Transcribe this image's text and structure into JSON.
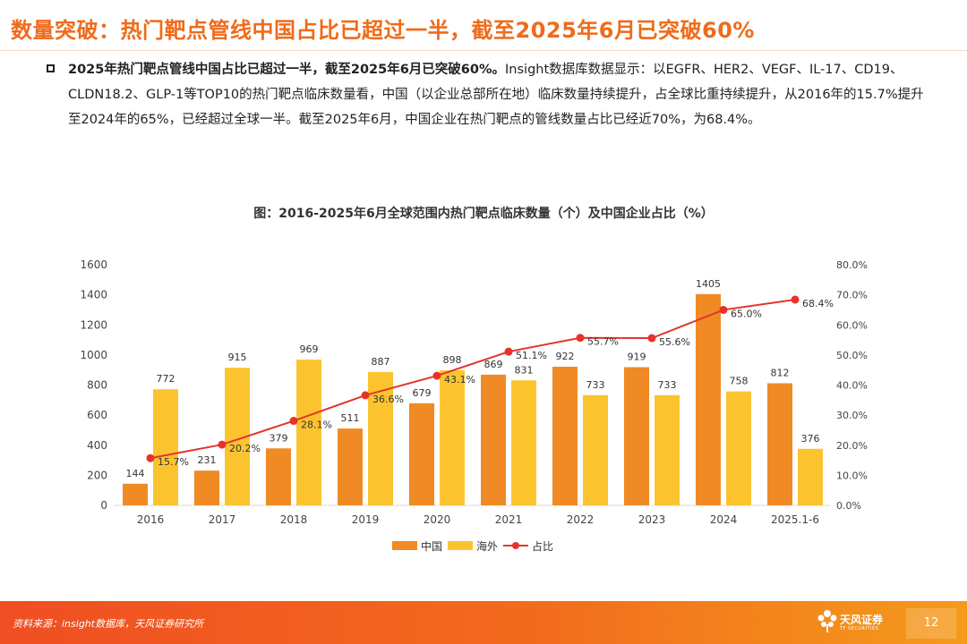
{
  "header": {
    "title": "数量突破：热门靶点管线中国占比已超过一半，截至2025年6月已突破60%"
  },
  "body": {
    "bold_lead": "2025年热门靶点管线中国占比已超过一半，截至2025年6月已突破60%。",
    "text": "Insight数据库数据显示：以EGFR、HER2、VEGF、IL-17、CD19、CLDN18.2、GLP-1等TOP10的热门靶点临床数量看，中国（以企业总部所在地）临床数量持续提升，占全球比重持续提升，从2016年的15.7%提升至2024年的65%，已经超过全球一半。截至2025年6月，中国企业在热门靶点的管线数量占比已经近70%，为68.4%。"
  },
  "chart_data": {
    "type": "bar",
    "title": "图：2016-2025年6月全球范围内热门靶点临床数量（个）及中国企业占比（%）",
    "categories": [
      "2016",
      "2017",
      "2018",
      "2019",
      "2020",
      "2021",
      "2022",
      "2023",
      "2024",
      "2025.1-6"
    ],
    "series": [
      {
        "name": "中国",
        "type": "bar",
        "color": "#f08a24",
        "values": [
          144,
          231,
          379,
          511,
          679,
          869,
          922,
          919,
          1405,
          812
        ]
      },
      {
        "name": "海外",
        "type": "bar",
        "color": "#fbc42f",
        "values": [
          772,
          915,
          969,
          887,
          898,
          831,
          733,
          733,
          758,
          376
        ]
      },
      {
        "name": "占比",
        "type": "line",
        "axis": "right",
        "color": "#e5332a",
        "values": [
          15.7,
          20.2,
          28.1,
          36.6,
          43.1,
          51.1,
          55.7,
          55.6,
          65.0,
          68.4
        ],
        "labels": [
          "15.7%",
          "20.2%",
          "28.1%",
          "36.6%",
          "43.1%",
          "51.1%",
          "55.7%",
          "55.6%",
          "65.0%",
          "68.4%"
        ]
      }
    ],
    "y_left": {
      "min": 0,
      "max": 1600,
      "ticks": [
        "0",
        "200",
        "400",
        "600",
        "800",
        "1000",
        "1200",
        "1400",
        "1600"
      ]
    },
    "y_right": {
      "min": 0,
      "max": 80,
      "ticks": [
        "0.0%",
        "10.0%",
        "20.0%",
        "30.0%",
        "40.0%",
        "50.0%",
        "60.0%",
        "70.0%",
        "80.0%"
      ]
    },
    "legend_position": "bottom"
  },
  "footer": {
    "source": "资料来源：insight数据库，天风证券研究所",
    "logo_name": "天风证券",
    "logo_sub": "TF SECURITIES",
    "page_number": "12"
  }
}
